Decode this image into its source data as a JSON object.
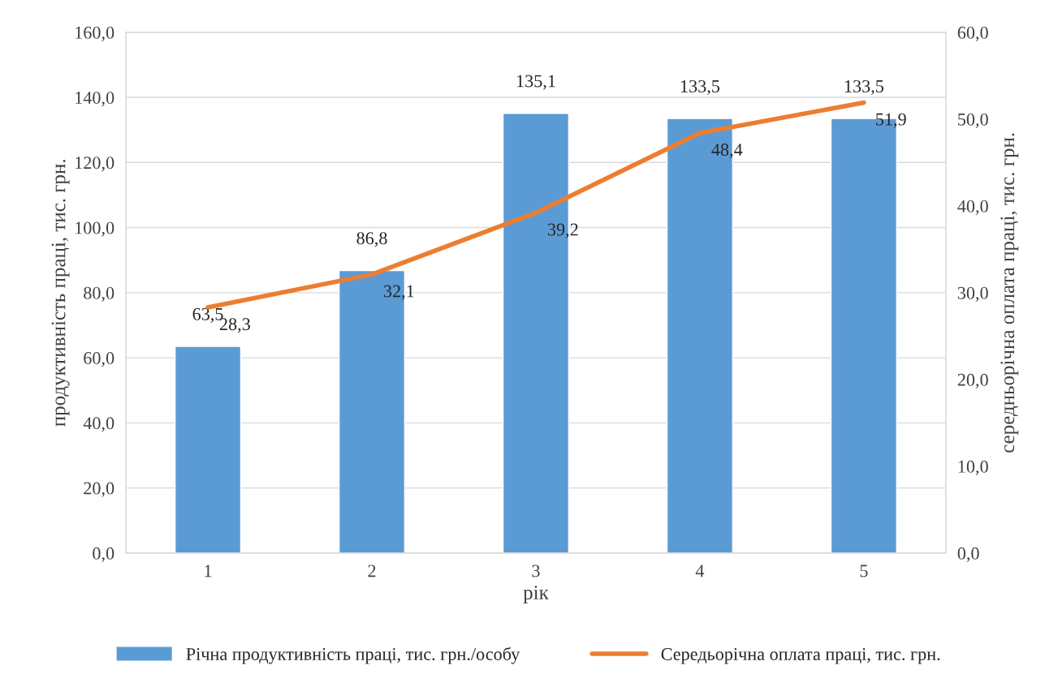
{
  "chart_data": {
    "type": "bar",
    "xlabel": "рік",
    "ylabel": "продуктивність праці, тис. грн.",
    "y2label": "середньорічна оплата праці, тис. грн.",
    "categories": [
      "1",
      "2",
      "3",
      "4",
      "5"
    ],
    "series": [
      {
        "name": "Річна продуктивність праці, тис. грн./особу",
        "color": "#5b9bd5",
        "values": [
          63.5,
          86.8,
          135.1,
          133.5,
          133.5
        ],
        "value_labels": [
          "63,5",
          "86,8",
          "135,1",
          "133,5",
          "133,5"
        ]
      },
      {
        "name": "Середьорічна оплата праці, тис. грн.",
        "type": "line",
        "axis": "y2",
        "color": "#ed7d31",
        "values": [
          28.3,
          32.1,
          39.2,
          48.4,
          51.9
        ],
        "value_labels": [
          "28,3",
          "32,1",
          "39,2",
          "48,4",
          "51,9"
        ]
      }
    ],
    "ylim": [
      0,
      160
    ],
    "yticks": [
      {
        "value": 0,
        "label": "0,0"
      },
      {
        "value": 20,
        "label": "20,0"
      },
      {
        "value": 40,
        "label": "40,0"
      },
      {
        "value": 60,
        "label": "60,0"
      },
      {
        "value": 80,
        "label": "80,0"
      },
      {
        "value": 100,
        "label": "100,0"
      },
      {
        "value": 120,
        "label": "120,0"
      },
      {
        "value": 140,
        "label": "140,0"
      },
      {
        "value": 160,
        "label": "160,0"
      }
    ],
    "y2lim": [
      0,
      60
    ],
    "y2ticks": [
      {
        "value": 0,
        "label": "0,0"
      },
      {
        "value": 10,
        "label": "10,0"
      },
      {
        "value": 20,
        "label": "20,0"
      },
      {
        "value": 30,
        "label": "30,0"
      },
      {
        "value": 40,
        "label": "40,0"
      },
      {
        "value": 50,
        "label": "50,0"
      },
      {
        "value": 60,
        "label": "60,0"
      }
    ],
    "grid": "y",
    "legend": "bottom",
    "marker": "none",
    "line_style": "solid"
  }
}
